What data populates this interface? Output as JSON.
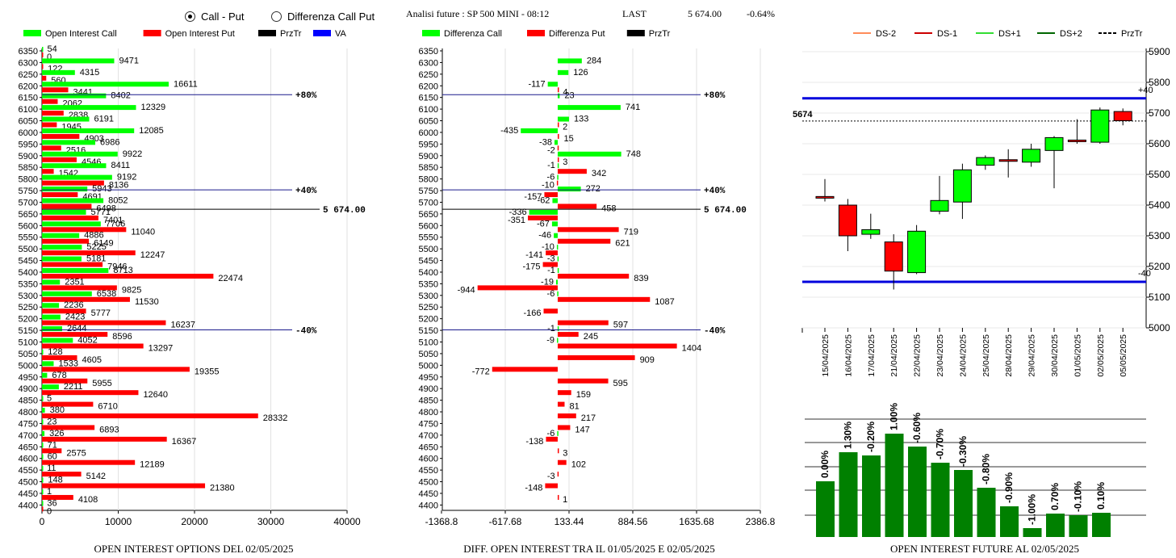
{
  "header": {
    "radio_call_put": "Call - Put",
    "radio_diff": "Differenza Call Put",
    "radio_selected": "call_put",
    "info_title": "Analisi future : SP 500 MINI - 08:12",
    "last_label": "LAST",
    "last_value": "5 674.00",
    "last_change": "-0.64%"
  },
  "colors": {
    "call": "#00ff00",
    "put": "#ff0000",
    "przt": "#000000",
    "va": "#0000ff",
    "dark_green": "#008000"
  },
  "chart_data": [
    {
      "id": "oi",
      "type": "bar",
      "orientation": "horizontal",
      "footer": "OPEN INTEREST OPTIONS DEL 02/05/2025",
      "legend": [
        "Open Interest Call",
        "Open Interest Put",
        "PrzTr",
        "VA"
      ],
      "xlim": [
        0,
        40000
      ],
      "xticks": [
        "0",
        "10000",
        "20000",
        "30000",
        "40000"
      ],
      "categories": [
        6350,
        6300,
        6250,
        6200,
        6150,
        6100,
        6050,
        6000,
        5950,
        5900,
        5850,
        5800,
        5750,
        5700,
        5650,
        5600,
        5550,
        5500,
        5450,
        5400,
        5350,
        5300,
        5250,
        5200,
        5150,
        5100,
        5050,
        5000,
        4950,
        4900,
        4850,
        4800,
        4750,
        4700,
        4650,
        4600,
        4550,
        4500,
        4450,
        4400
      ],
      "series": [
        {
          "name": "Open Interest Call",
          "values": [
            54,
            9471,
            4315,
            16611,
            8402,
            12329,
            6191,
            12085,
            6986,
            9922,
            8411,
            9192,
            5943,
            8052,
            5771,
            7706,
            4886,
            5225,
            5181,
            8713,
            2351,
            6538,
            2236,
            2423,
            2644,
            4052,
            128,
            1533,
            678,
            2211,
            5,
            380,
            23,
            326,
            71,
            60,
            11,
            148,
            1,
            36
          ]
        },
        {
          "name": "Open Interest Put",
          "values": [
            0,
            122,
            560,
            3441,
            2062,
            2838,
            1945,
            4903,
            2516,
            4546,
            1542,
            8136,
            4691,
            6498,
            7401,
            11040,
            6149,
            12247,
            7946,
            22474,
            9825,
            11530,
            5777,
            16237,
            8596,
            13297,
            4605,
            19355,
            5955,
            12640,
            6710,
            28332,
            6893,
            16367,
            2575,
            12189,
            5142,
            21380,
            4108,
            0
          ]
        }
      ],
      "lines": [
        {
          "label": "+80%",
          "level": 6162
        },
        {
          "label": "+40%",
          "level": 5753
        },
        {
          "label": "5 674.00",
          "level": 5670
        },
        {
          "label": "-40%",
          "level": 5152
        }
      ]
    },
    {
      "id": "diff",
      "type": "bar",
      "orientation": "horizontal",
      "footer": "DIFF. OPEN INTEREST TRA IL 01/05/2025 E 02/05/2025",
      "legend": [
        "Differenza Call",
        "Differenza Put",
        "PrzTr"
      ],
      "xlim": [
        -1368.8,
        2386.8
      ],
      "xticks": [
        "-1368.8",
        "-617.68",
        "133.44",
        "884.56",
        "1635.68",
        "2386.8"
      ],
      "categories": [
        6350,
        6300,
        6250,
        6200,
        6150,
        6100,
        6050,
        6000,
        5950,
        5900,
        5850,
        5800,
        5750,
        5700,
        5650,
        5600,
        5550,
        5500,
        5450,
        5400,
        5350,
        5300,
        5250,
        5200,
        5150,
        5100,
        5050,
        5000,
        4950,
        4900,
        4850,
        4800,
        4750,
        4700,
        4650,
        4600,
        4550,
        4500,
        4450,
        4400
      ],
      "series": [
        {
          "name": "Differenza Call",
          "values": [
            null,
            284,
            126,
            -117,
            23,
            741,
            133,
            -435,
            -38,
            748,
            -1,
            -6,
            272,
            -62,
            -336,
            -67,
            -46,
            -10,
            -3,
            -1,
            -19,
            -6,
            null,
            null,
            -1,
            -9,
            null,
            null,
            null,
            null,
            null,
            null,
            null,
            -6,
            null,
            null,
            null,
            null,
            null,
            null
          ]
        },
        {
          "name": "Differenza Put",
          "values": [
            null,
            null,
            null,
            4,
            null,
            null,
            2,
            15,
            -2,
            3,
            342,
            -10,
            -157,
            458,
            -351,
            719,
            621,
            -141,
            -175,
            839,
            -944,
            1087,
            -166,
            597,
            245,
            1404,
            909,
            -772,
            595,
            159,
            81,
            217,
            147,
            -138,
            3,
            102,
            -3,
            -148,
            1,
            null
          ]
        }
      ],
      "lines": [
        {
          "label": "+80%",
          "level": 6162
        },
        {
          "label": "+40%",
          "level": 5753
        },
        {
          "label": "5 674.00",
          "level": 5670
        },
        {
          "label": "-40%",
          "level": 5152
        }
      ]
    },
    {
      "id": "candles",
      "type": "candlestick",
      "legend": [
        "DS-2",
        "DS-1",
        "DS+1",
        "DS+2",
        "PrzTr"
      ],
      "ylim": [
        5000,
        5900
      ],
      "yticks": [
        "5900",
        "5800",
        "5700",
        "5600",
        "5500",
        "5400",
        "5300",
        "5200",
        "5100",
        "5000"
      ],
      "current_label": "5674",
      "current_value": 5674,
      "upper_band": {
        "label": "+40",
        "value": 5748
      },
      "lower_band": {
        "label": "-40",
        "value": 5150
      },
      "dates": [
        "15/04/2025",
        "16/04/2025",
        "17/04/2025",
        "21/04/2025",
        "22/04/2025",
        "23/04/2025",
        "24/04/2025",
        "25/04/2025",
        "28/04/2025",
        "29/04/2025",
        "30/04/2025",
        "01/05/2025",
        "02/05/2025",
        "05/05/2025"
      ],
      "ohlc": [
        [
          5428,
          5485,
          5412,
          5425
        ],
        [
          5400,
          5420,
          5250,
          5300
        ],
        [
          5305,
          5372,
          5290,
          5320
        ],
        [
          5280,
          5305,
          5125,
          5185
        ],
        [
          5180,
          5335,
          5175,
          5315
        ],
        [
          5380,
          5495,
          5370,
          5415
        ],
        [
          5410,
          5535,
          5355,
          5515
        ],
        [
          5530,
          5562,
          5515,
          5555
        ],
        [
          5548,
          5582,
          5490,
          5545
        ],
        [
          5540,
          5600,
          5525,
          5582
        ],
        [
          5578,
          5625,
          5455,
          5620
        ],
        [
          5612,
          5680,
          5600,
          5608
        ],
        [
          5605,
          5718,
          5600,
          5710
        ],
        [
          5705,
          5715,
          5660,
          5675
        ]
      ]
    },
    {
      "id": "future_oi",
      "type": "bar",
      "footer": "OPEN INTEREST FUTURE AL 02/05/2025",
      "labels": [
        "0.00%",
        "1.30%",
        "-0.20%",
        "1.00%",
        "-0.60%",
        "-0.70%",
        "-0.30%",
        "-0.80%",
        "-0.90%",
        "-1.00%",
        "0.70%",
        "-0.10%",
        "0.10%"
      ],
      "values": [
        69,
        105,
        101,
        128,
        112,
        92,
        83,
        61,
        38,
        11,
        29,
        27,
        30
      ],
      "ymax": 150
    }
  ]
}
